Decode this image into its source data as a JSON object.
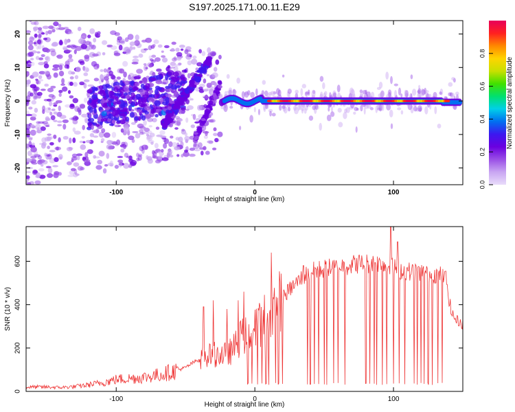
{
  "title": "S197.2025.171.00.11.E29",
  "chart_data": [
    {
      "type": "heatmap",
      "xlabel": "Height of straight line (km)",
      "ylabel": "Frequency (Hz)",
      "xlim": [
        -165,
        150
      ],
      "ylim": [
        -25,
        24
      ],
      "xticks": [
        -100,
        0,
        100
      ],
      "yticks": [
        -20,
        -10,
        0,
        10,
        20
      ],
      "colorbar": {
        "label": "Normalized spectral amplitude",
        "range": [
          0,
          1
        ],
        "ticks": [
          0.0,
          0.2,
          0.4,
          0.6,
          0.8
        ],
        "tick_labels": [
          "0.0",
          "0.2",
          "0.4",
          "0.6",
          "0.8"
        ],
        "colormap": [
          "#e8dcfa",
          "#c9a6f2",
          "#9a4fe6",
          "#6a00e0",
          "#3c18f0",
          "#0070f0",
          "#00d0e8",
          "#00e070",
          "#40e000",
          "#c8e000",
          "#ffd400",
          "#ff8800",
          "#ff2020",
          "#e8005a"
        ]
      },
      "features": [
        {
          "name": "main tone",
          "x_range": [
            -20,
            148
          ],
          "freq_hz": 0,
          "level": "strongest from 10 to 140 km"
        },
        {
          "name": "ascending track",
          "x_range": [
            -67,
            -33
          ],
          "freq_range_hz": [
            -8,
            12
          ]
        },
        {
          "name": "secondary track",
          "x_range": [
            -43,
            -25
          ],
          "freq_range_hz": [
            -11,
            5
          ]
        },
        {
          "name": "scattered noise",
          "x_range": [
            -165,
            -30
          ],
          "freq_range_hz": [
            -25,
            24
          ]
        }
      ]
    },
    {
      "type": "line",
      "xlabel": "Height of straight line (km)",
      "ylabel": "SNR (10 * v/v)",
      "xlim": [
        -165,
        150
      ],
      "ylim": [
        0,
        760
      ],
      "xticks": [
        -100,
        0,
        100
      ],
      "yticks": [
        0,
        200,
        400,
        600
      ],
      "color": "#ee3333",
      "x": [
        -165,
        -150,
        -140,
        -130,
        -120,
        -110,
        -100,
        -90,
        -80,
        -70,
        -60,
        -50,
        -40,
        -30,
        -20,
        -15,
        -10,
        -5,
        0,
        5,
        10,
        15,
        20,
        25,
        30,
        35,
        40,
        45,
        50,
        55,
        60,
        65,
        70,
        75,
        80,
        85,
        90,
        95,
        100,
        105,
        110,
        115,
        120,
        125,
        130,
        135,
        138,
        140,
        142,
        145,
        148,
        150
      ],
      "y": [
        20,
        20,
        18,
        22,
        30,
        40,
        55,
        60,
        65,
        75,
        90,
        110,
        150,
        170,
        170,
        200,
        250,
        260,
        280,
        320,
        360,
        400,
        430,
        470,
        500,
        530,
        550,
        560,
        565,
        570,
        575,
        580,
        585,
        590,
        590,
        590,
        590,
        580,
        570,
        560,
        555,
        550,
        550,
        545,
        540,
        535,
        520,
        430,
        360,
        330,
        320,
        310
      ],
      "dropouts_x": [
        -5,
        -2,
        2,
        5,
        8,
        10,
        12,
        15,
        17,
        20,
        38,
        40,
        43,
        46,
        50,
        52,
        57,
        60,
        65,
        80,
        83,
        86,
        88,
        92,
        95,
        98,
        100,
        104,
        108,
        115,
        117,
        120,
        122,
        125,
        128,
        132,
        135
      ],
      "spikes": [
        [
          -37,
          390
        ],
        [
          -30,
          420
        ],
        [
          -20,
          380
        ],
        [
          -12,
          420
        ],
        [
          -8,
          460
        ],
        [
          12,
          640
        ],
        [
          35,
          580
        ],
        [
          98,
          760
        ],
        [
          103,
          690
        ]
      ]
    }
  ]
}
